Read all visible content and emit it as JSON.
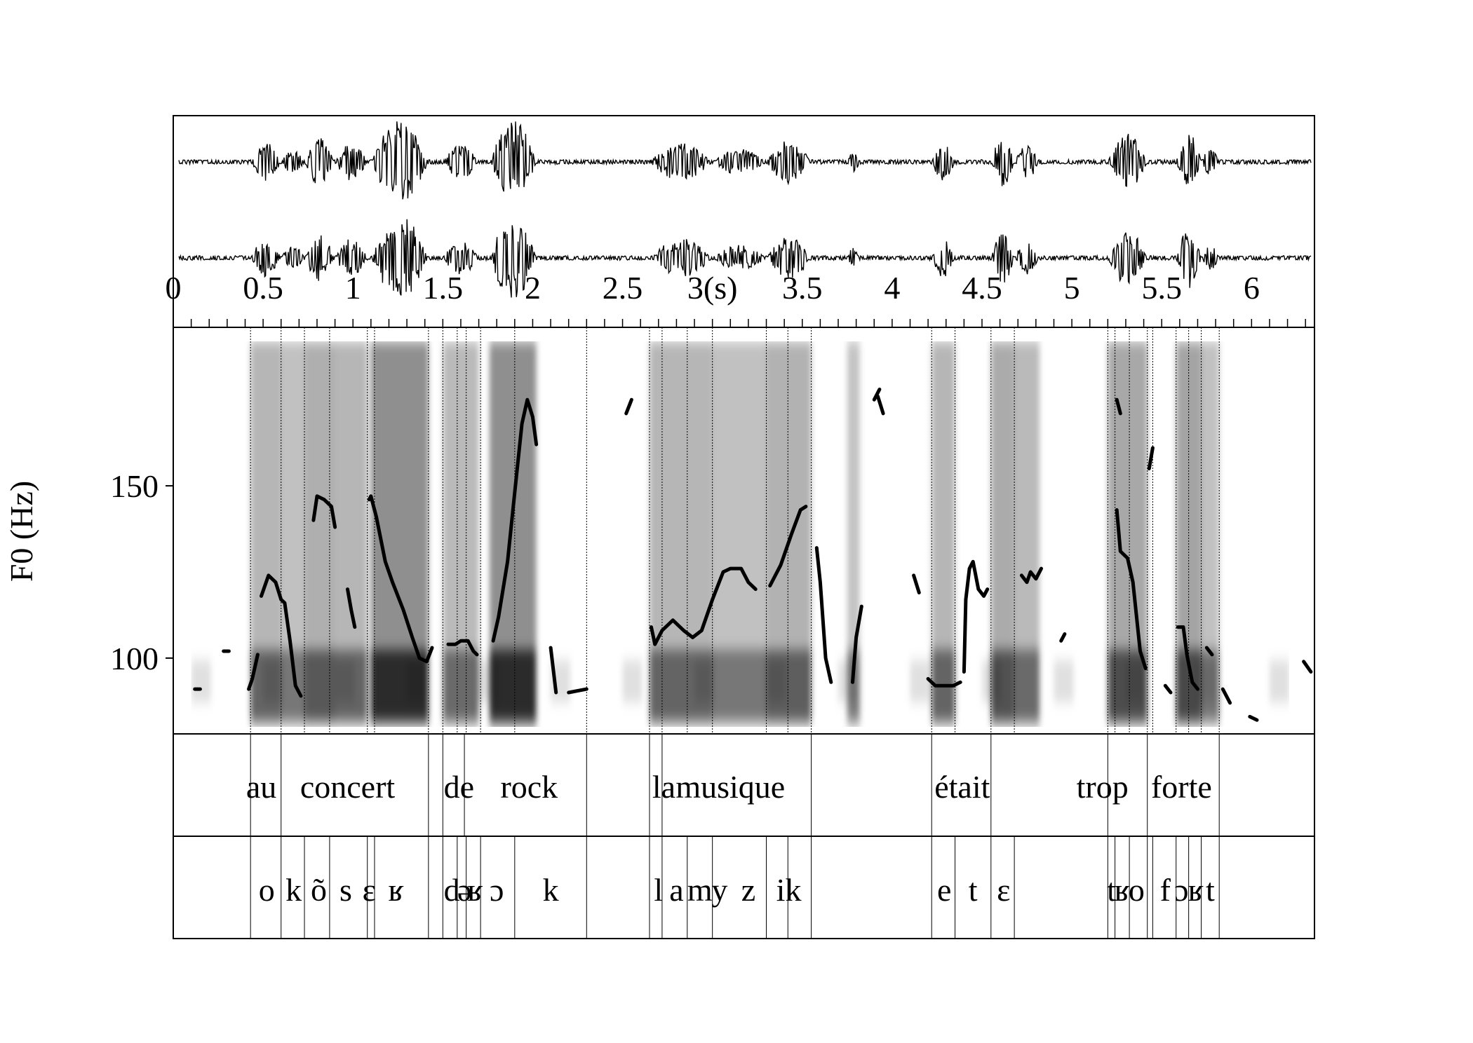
{
  "chart_data": {
    "type": "line",
    "title": "",
    "xlabel": "",
    "ylabel": "F0 (Hz)",
    "time_unit_label": "3(s)",
    "xlim": [
      0,
      6.35
    ],
    "ylim": [
      78,
      196
    ],
    "x_ticks": [
      {
        "value": 0,
        "label": "0"
      },
      {
        "value": 0.5,
        "label": "0.5"
      },
      {
        "value": 1,
        "label": "1"
      },
      {
        "value": 1.5,
        "label": "1.5"
      },
      {
        "value": 2,
        "label": "2"
      },
      {
        "value": 2.5,
        "label": "2.5"
      },
      {
        "value": 3,
        "label": "3(s)"
      },
      {
        "value": 3.5,
        "label": "3.5"
      },
      {
        "value": 4,
        "label": "4"
      },
      {
        "value": 4.5,
        "label": "4.5"
      },
      {
        "value": 5,
        "label": "5"
      },
      {
        "value": 5.5,
        "label": "5.5"
      },
      {
        "value": 6,
        "label": "6"
      }
    ],
    "y_ticks": [
      {
        "value": 100,
        "label": "100"
      },
      {
        "value": 150,
        "label": "150"
      }
    ],
    "f0_segments": [
      {
        "x": [
          0.12,
          0.15
        ],
        "y": [
          91,
          91
        ]
      },
      {
        "x": [
          0.28,
          0.31
        ],
        "y": [
          102,
          102
        ]
      },
      {
        "x": [
          0.42,
          0.44,
          0.47
        ],
        "y": [
          91,
          94,
          101
        ]
      },
      {
        "x": [
          0.49,
          0.53,
          0.57,
          0.6,
          0.62,
          0.65,
          0.68,
          0.71
        ],
        "y": [
          118,
          124,
          122,
          117,
          116,
          105,
          92,
          89
        ]
      },
      {
        "x": [
          0.78,
          0.8,
          0.84,
          0.88,
          0.9
        ],
        "y": [
          140,
          147,
          146,
          144,
          138
        ]
      },
      {
        "x": [
          0.97,
          0.99,
          1.01
        ],
        "y": [
          120,
          114,
          109
        ]
      },
      {
        "x": [
          1.09,
          1.1,
          1.13,
          1.18,
          1.22,
          1.28,
          1.33,
          1.37,
          1.41,
          1.44
        ],
        "y": [
          146,
          147,
          141,
          128,
          122,
          114,
          106,
          100,
          99,
          103
        ]
      },
      {
        "x": [
          1.53,
          1.57,
          1.6,
          1.64,
          1.67,
          1.69
        ],
        "y": [
          104,
          104,
          105,
          105,
          102,
          101
        ]
      },
      {
        "x": [
          1.78,
          1.81,
          1.86,
          1.9,
          1.94,
          1.97,
          2.0,
          2.02
        ],
        "y": [
          105,
          112,
          128,
          148,
          168,
          175,
          170,
          162
        ]
      },
      {
        "x": [
          2.1,
          2.13
        ],
        "y": [
          103,
          90
        ]
      },
      {
        "x": [
          2.2,
          2.3
        ],
        "y": [
          90,
          91
        ]
      },
      {
        "x": [
          2.52,
          2.55
        ],
        "y": [
          171,
          175
        ]
      },
      {
        "x": [
          2.66,
          2.68,
          2.72,
          2.78,
          2.84,
          2.89,
          2.94,
          3.0,
          3.06,
          3.1,
          3.16,
          3.2,
          3.24
        ],
        "y": [
          109,
          104,
          108,
          111,
          108,
          106,
          108,
          117,
          125,
          126,
          126,
          122,
          120
        ]
      },
      {
        "x": [
          3.32,
          3.38,
          3.44,
          3.49,
          3.52
        ],
        "y": [
          121,
          127,
          136,
          143,
          144
        ]
      },
      {
        "x": [
          3.58,
          3.6,
          3.63,
          3.66
        ],
        "y": [
          132,
          122,
          100,
          93
        ]
      },
      {
        "x": [
          3.78,
          3.8,
          3.83
        ],
        "y": [
          93,
          106,
          115
        ]
      },
      {
        "x": [
          3.9,
          3.93
        ],
        "y": [
          175,
          178
        ]
      },
      {
        "x": [
          3.92,
          3.95
        ],
        "y": [
          176,
          171
        ]
      },
      {
        "x": [
          4.12,
          4.15
        ],
        "y": [
          124,
          119
        ]
      },
      {
        "x": [
          4.2,
          4.24,
          4.29,
          4.34,
          4.38
        ],
        "y": [
          94,
          92,
          92,
          92,
          93
        ]
      },
      {
        "x": [
          4.4,
          4.41,
          4.43,
          4.45,
          4.48,
          4.51,
          4.53
        ],
        "y": [
          96,
          117,
          126,
          128,
          120,
          118,
          120
        ]
      },
      {
        "x": [
          4.72,
          4.75,
          4.77,
          4.8,
          4.83
        ],
        "y": [
          124,
          122,
          125,
          123,
          126
        ]
      },
      {
        "x": [
          4.94,
          4.96
        ],
        "y": [
          105,
          107
        ]
      },
      {
        "x": [
          5.25,
          5.27,
          5.31,
          5.34,
          5.38,
          5.41
        ],
        "y": [
          143,
          131,
          129,
          122,
          102,
          97
        ]
      },
      {
        "x": [
          5.25,
          5.27
        ],
        "y": [
          175,
          171
        ]
      },
      {
        "x": [
          5.43,
          5.45
        ],
        "y": [
          155,
          161
        ]
      },
      {
        "x": [
          5.52,
          5.55
        ],
        "y": [
          92,
          90
        ]
      },
      {
        "x": [
          5.59,
          5.62,
          5.64,
          5.67,
          5.7
        ],
        "y": [
          109,
          109,
          101,
          93,
          91
        ]
      },
      {
        "x": [
          5.75,
          5.78
        ],
        "y": [
          103,
          101
        ]
      },
      {
        "x": [
          5.84,
          5.88
        ],
        "y": [
          91,
          87
        ]
      },
      {
        "x": [
          5.99,
          6.03
        ],
        "y": [
          83,
          82
        ]
      },
      {
        "x": [
          6.29,
          6.33
        ],
        "y": [
          99,
          96
        ]
      }
    ],
    "tiers": [
      {
        "name": "words",
        "boundaries": [
          0.43,
          0.6,
          1.42,
          1.5,
          1.62,
          2.3,
          2.65,
          2.72,
          3.55,
          4.22,
          4.55,
          5.2,
          5.42,
          5.82
        ],
        "labels": [
          {
            "text": "au",
            "x": 0.49
          },
          {
            "text": "concert",
            "x": 0.97
          },
          {
            "text": "de",
            "x": 1.59
          },
          {
            "text": "rock",
            "x": 1.98
          },
          {
            "text": "la",
            "x": 2.73
          },
          {
            "text": "musique",
            "x": 3.1
          },
          {
            "text": "était",
            "x": 4.39
          },
          {
            "text": "trop",
            "x": 5.17
          },
          {
            "text": "forte",
            "x": 5.61
          }
        ]
      },
      {
        "name": "phones",
        "boundaries": [
          0.43,
          0.6,
          0.73,
          0.87,
          1.08,
          1.12,
          1.42,
          1.5,
          1.58,
          1.63,
          1.71,
          1.9,
          2.3,
          2.65,
          2.72,
          2.86,
          3.0,
          3.3,
          3.42,
          3.55,
          4.22,
          4.35,
          4.55,
          4.68,
          5.2,
          5.24,
          5.32,
          5.42,
          5.45,
          5.58,
          5.65,
          5.72,
          5.82
        ],
        "labels": [
          {
            "text": "o",
            "x": 0.52
          },
          {
            "text": "k",
            "x": 0.67
          },
          {
            "text": "õ",
            "x": 0.81
          },
          {
            "text": "s",
            "x": 0.96
          },
          {
            "text": "ɛ",
            "x": 1.09
          },
          {
            "text": "ʁ",
            "x": 1.24
          },
          {
            "text": "d",
            "x": 1.55
          },
          {
            "text": "ə",
            "x": 1.62
          },
          {
            "text": "ʁ",
            "x": 1.68
          },
          {
            "text": "ɔ",
            "x": 1.8
          },
          {
            "text": "k",
            "x": 2.1
          },
          {
            "text": "l",
            "x": 2.7
          },
          {
            "text": "a",
            "x": 2.8
          },
          {
            "text": "m",
            "x": 2.93
          },
          {
            "text": "y",
            "x": 3.04
          },
          {
            "text": "z",
            "x": 3.2
          },
          {
            "text": "i",
            "x": 3.38
          },
          {
            "text": "k",
            "x": 3.45
          },
          {
            "text": "e",
            "x": 4.29
          },
          {
            "text": "t",
            "x": 4.45
          },
          {
            "text": "ɛ",
            "x": 4.62
          },
          {
            "text": "t",
            "x": 5.22
          },
          {
            "text": "ʁ",
            "x": 5.28
          },
          {
            "text": "o",
            "x": 5.36
          },
          {
            "text": "f",
            "x": 5.52
          },
          {
            "text": "ɔ",
            "x": 5.61
          },
          {
            "text": "ʁ",
            "x": 5.69
          },
          {
            "text": "t",
            "x": 5.77
          }
        ]
      }
    ],
    "grid": false,
    "legend": "none"
  }
}
